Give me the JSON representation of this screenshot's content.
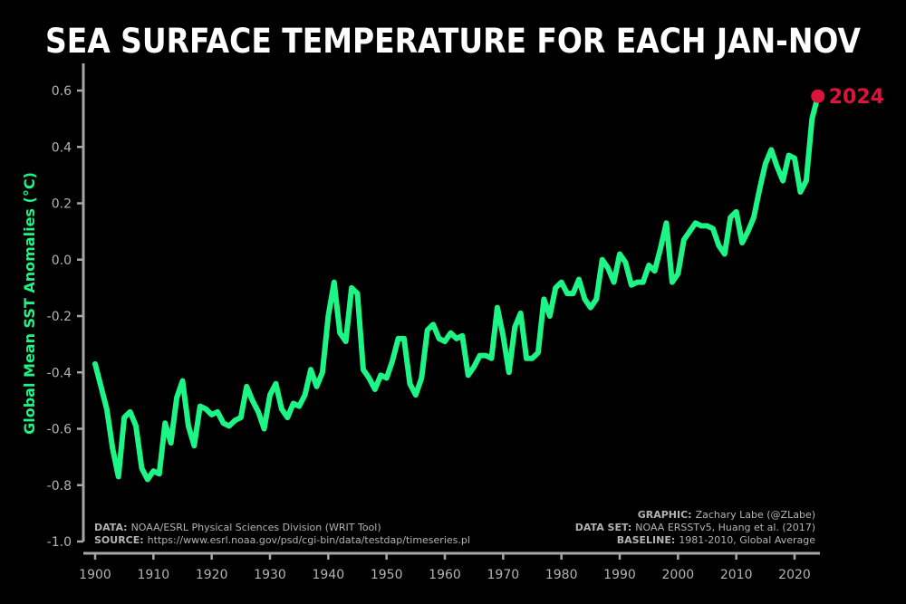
{
  "colors": {
    "background": "#000000",
    "line": "#1ef587",
    "highlight": "#dc143c",
    "axis": "#a6a6a6",
    "text": "#b3b3b3",
    "title": "#ffffff"
  },
  "chart_data": {
    "type": "line",
    "title": "SEA SURFACE TEMPERATURE FOR EACH JAN-NOV",
    "xlabel": "",
    "ylabel": "Global Mean SST Anomalies (°C)",
    "xlim": [
      1900,
      2024
    ],
    "ylim": [
      -1.0,
      0.6
    ],
    "xticks": [
      "1900",
      "1910",
      "1920",
      "1930",
      "1940",
      "1950",
      "1960",
      "1970",
      "1980",
      "1990",
      "2000",
      "2010",
      "2020"
    ],
    "yticks": [
      "0.6",
      "0.4",
      "0.2",
      "0.0",
      "-0.2",
      "-0.4",
      "-0.6",
      "-0.8",
      "-1.0"
    ],
    "grid": false,
    "series": [
      {
        "x": [
          1900,
          1901,
          1902,
          1903,
          1904,
          1905,
          1906,
          1907,
          1908,
          1909,
          1910,
          1911,
          1912,
          1913,
          1914,
          1915,
          1916,
          1917,
          1918,
          1919,
          1920,
          1921,
          1922,
          1923,
          1924,
          1925,
          1926,
          1927,
          1928,
          1929,
          1930,
          1931,
          1932,
          1933,
          1934,
          1935,
          1936,
          1937,
          1938,
          1939,
          1940,
          1941,
          1942,
          1943,
          1944,
          1945,
          1946,
          1947,
          1948,
          1949,
          1950,
          1951,
          1952,
          1953,
          1954,
          1955,
          1956,
          1957,
          1958,
          1959,
          1960,
          1961,
          1962,
          1963,
          1964,
          1965,
          1966,
          1967,
          1968,
          1969,
          1970,
          1971,
          1972,
          1973,
          1974,
          1975,
          1976,
          1977,
          1978,
          1979,
          1980,
          1981,
          1982,
          1983,
          1984,
          1985,
          1986,
          1987,
          1988,
          1989,
          1990,
          1991,
          1992,
          1993,
          1994,
          1995,
          1996,
          1997,
          1998,
          1999,
          2000,
          2001,
          2002,
          2003,
          2004,
          2005,
          2006,
          2007,
          2008,
          2009,
          2010,
          2011,
          2012,
          2013,
          2014,
          2015,
          2016,
          2017,
          2018,
          2019,
          2020,
          2021,
          2022,
          2023,
          2024
        ],
        "values": [
          -0.37,
          -0.45,
          -0.53,
          -0.67,
          -0.77,
          -0.56,
          -0.54,
          -0.59,
          -0.74,
          -0.78,
          -0.75,
          -0.76,
          -0.58,
          -0.65,
          -0.49,
          -0.43,
          -0.59,
          -0.66,
          -0.52,
          -0.53,
          -0.55,
          -0.54,
          -0.58,
          -0.59,
          -0.57,
          -0.56,
          -0.45,
          -0.5,
          -0.54,
          -0.6,
          -0.48,
          -0.44,
          -0.53,
          -0.56,
          -0.51,
          -0.52,
          -0.48,
          -0.39,
          -0.45,
          -0.4,
          -0.2,
          -0.08,
          -0.26,
          -0.29,
          -0.1,
          -0.12,
          -0.39,
          -0.42,
          -0.46,
          -0.41,
          -0.42,
          -0.36,
          -0.28,
          -0.28,
          -0.44,
          -0.48,
          -0.42,
          -0.25,
          -0.23,
          -0.28,
          -0.29,
          -0.26,
          -0.28,
          -0.27,
          -0.41,
          -0.38,
          -0.34,
          -0.34,
          -0.35,
          -0.17,
          -0.27,
          -0.4,
          -0.24,
          -0.19,
          -0.35,
          -0.35,
          -0.33,
          -0.14,
          -0.2,
          -0.1,
          -0.08,
          -0.12,
          -0.12,
          -0.07,
          -0.14,
          -0.17,
          -0.14,
          0.0,
          -0.03,
          -0.08,
          0.02,
          -0.01,
          -0.09,
          -0.08,
          -0.08,
          -0.02,
          -0.04,
          0.04,
          0.13,
          -0.08,
          -0.05,
          0.07,
          0.1,
          0.13,
          0.12,
          0.12,
          0.11,
          0.05,
          0.02,
          0.15,
          0.17,
          0.06,
          0.1,
          0.15,
          0.25,
          0.34,
          0.39,
          0.33,
          0.28,
          0.37,
          0.36,
          0.24,
          0.28,
          0.5,
          0.58
        ]
      }
    ],
    "highlight": {
      "x": 2024,
      "y": 0.58,
      "label": "2024"
    }
  },
  "credits_left": [
    {
      "key": "DATA:",
      "value": "NOAA/ESRL Physical Sciences Division (WRIT Tool)"
    },
    {
      "key": "SOURCE:",
      "value": "https://www.esrl.noaa.gov/psd/cgi-bin/data/testdap/timeseries.pl"
    }
  ],
  "credits_right": [
    {
      "key": "GRAPHIC:",
      "value": "Zachary Labe (@ZLabe)"
    },
    {
      "key": "DATA SET:",
      "value": "NOAA ERSSTv5, Huang et al. (2017)"
    },
    {
      "key": "BASELINE:",
      "value": "1981-2010, Global Average"
    }
  ]
}
